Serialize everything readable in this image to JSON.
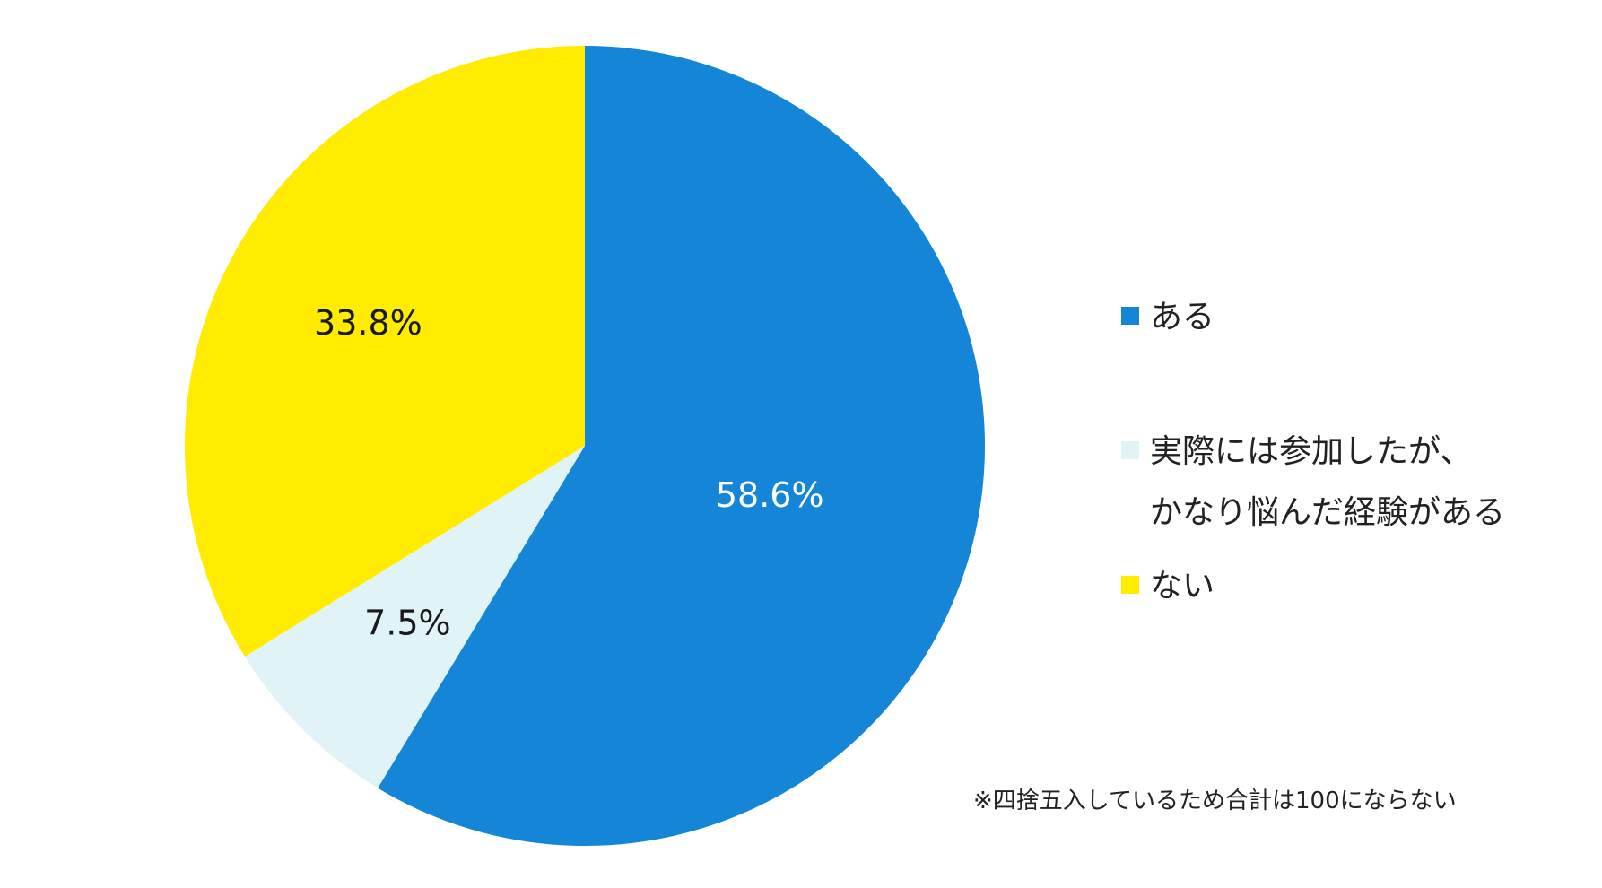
{
  "chart_data": {
    "type": "pie",
    "start_angle_deg": 0,
    "direction": "clockwise",
    "slices": [
      {
        "label": "ある",
        "value": 58.6,
        "display": "58.6%",
        "color": "#1585D8",
        "label_color": "#ffffff"
      },
      {
        "label": "実際には参加したが、\nかなり悩んだ経験がある",
        "value": 7.5,
        "display": "7.5%",
        "color": "#E0F4F8",
        "label_color": "#1a1a1a"
      },
      {
        "label": "ない",
        "value": 33.8,
        "display": "33.8%",
        "color": "#FFEC00",
        "label_color": "#1a1a1a"
      }
    ],
    "legend_position": "right"
  },
  "footnote": "※四捨五入しているため合計は100にならない"
}
